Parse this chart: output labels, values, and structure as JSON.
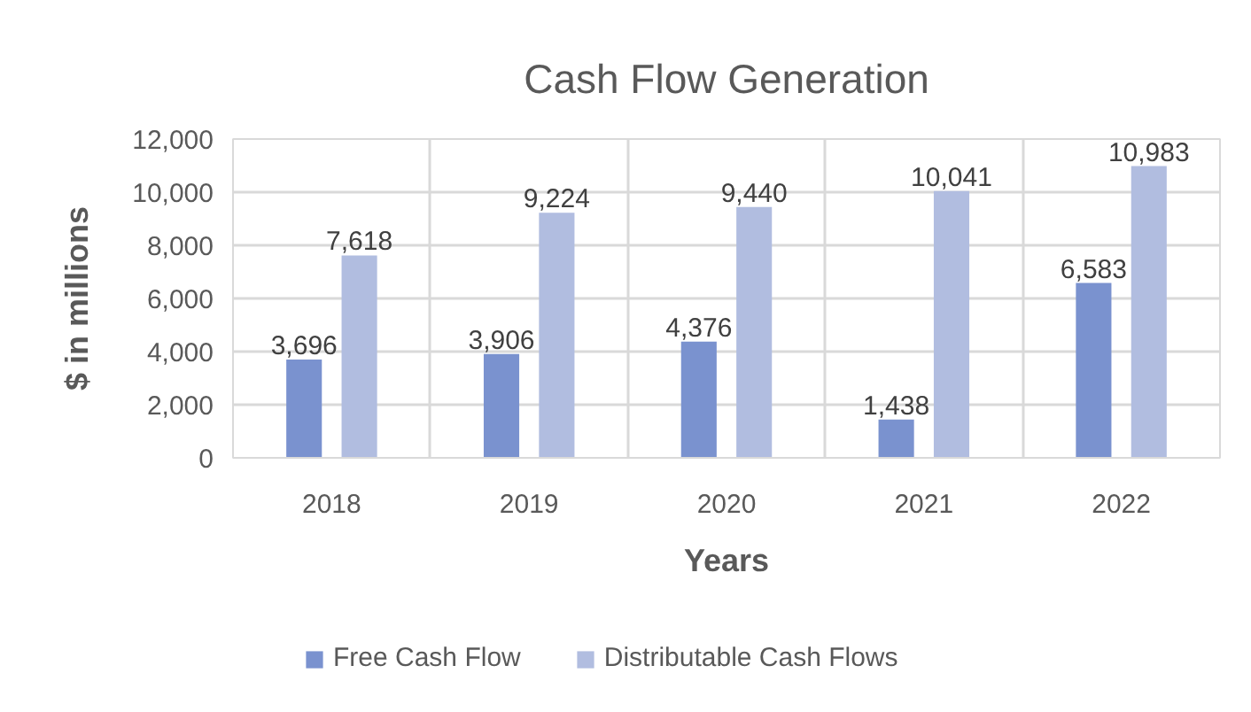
{
  "chart_data": {
    "type": "bar",
    "title": "Cash Flow Generation",
    "xlabel": "Years",
    "ylabel": "$ in millions",
    "categories": [
      "2018",
      "2019",
      "2020",
      "2021",
      "2022"
    ],
    "series": [
      {
        "name": "Free Cash Flow",
        "color": "#7a92cf",
        "values": [
          3696,
          3906,
          4376,
          1438,
          6583
        ],
        "value_labels": [
          "3,696",
          "3,906",
          "4,376",
          "1,438",
          "6,583"
        ]
      },
      {
        "name": "Distributable Cash Flows",
        "color": "#b1bde0",
        "values": [
          7618,
          9224,
          9440,
          10041,
          10983
        ],
        "value_labels": [
          "7,618",
          "9,224",
          "9,440",
          "10,041",
          "10,983"
        ]
      }
    ],
    "ylim": [
      0,
      12000
    ],
    "yticks": [
      {
        "value": 0,
        "label": "0"
      },
      {
        "value": 2000,
        "label": "2,000"
      },
      {
        "value": 4000,
        "label": "4,000"
      },
      {
        "value": 6000,
        "label": "6,000"
      },
      {
        "value": 8000,
        "label": "8,000"
      },
      {
        "value": 10000,
        "label": "10,000"
      },
      {
        "value": 12000,
        "label": "12,000"
      }
    ],
    "grid": true,
    "legend": "bottom"
  }
}
